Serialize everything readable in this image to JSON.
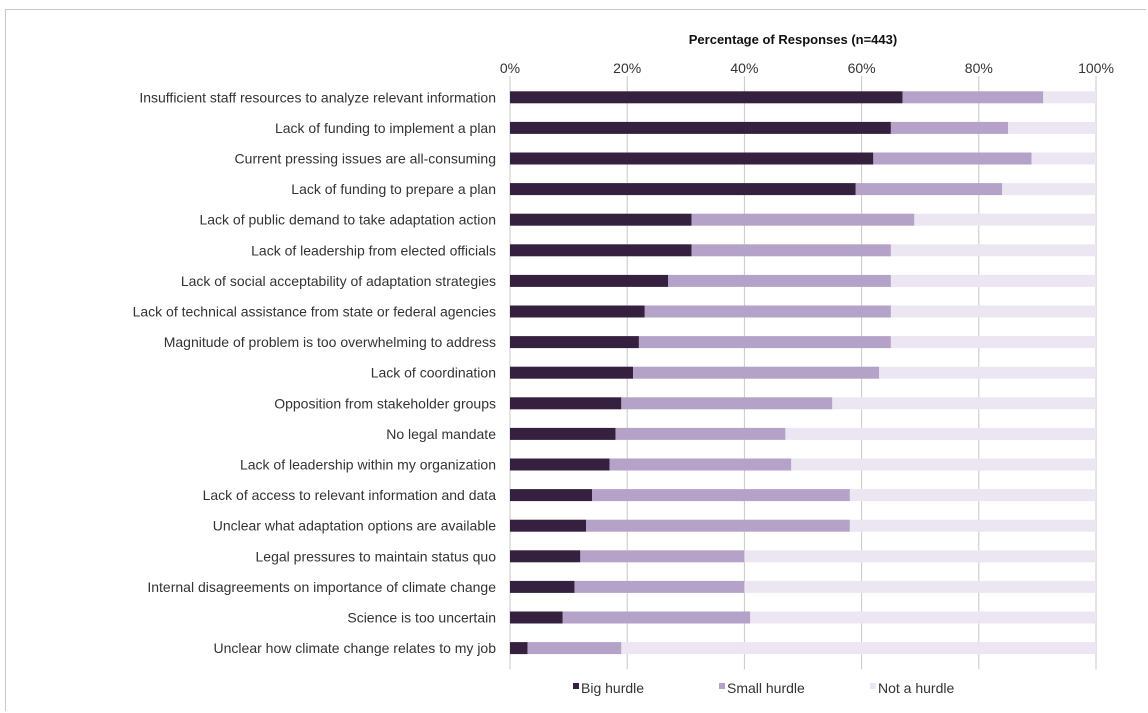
{
  "chart_data": {
    "type": "bar",
    "stacked": true,
    "orientation": "horizontal",
    "title": "Percentage of Responses (n=443)",
    "xlim": [
      0,
      100
    ],
    "x_ticks": [
      "0%",
      "20%",
      "40%",
      "60%",
      "80%",
      "100%"
    ],
    "grid": true,
    "legend_position": "bottom",
    "categories": [
      "Insufficient staff resources to analyze relevant information",
      "Lack of funding to implement a plan",
      "Current pressing issues are all-consuming",
      "Lack of funding to prepare a plan",
      "Lack of public demand to take adaptation action",
      "Lack of leadership from elected officials",
      "Lack of social acceptability of adaptation strategies",
      "Lack of technical assistance from state or federal agencies",
      "Magnitude of problem is too overwhelming to address",
      "Lack of coordination",
      "Opposition from stakeholder groups",
      "No legal mandate",
      "Lack of leadership within my organization",
      "Lack of access to relevant information and data",
      "Unclear what adaptation options are available",
      "Legal pressures to maintain status quo",
      "Internal disagreements on importance of climate change",
      "Science is too uncertain",
      "Unclear how climate change relates to my job"
    ],
    "series": [
      {
        "name": "Big hurdle",
        "color": "#35213f",
        "values": [
          67,
          65,
          62,
          59,
          31,
          31,
          27,
          23,
          22,
          21,
          19,
          18,
          17,
          14,
          13,
          12,
          11,
          9,
          3
        ]
      },
      {
        "name": "Small hurdle",
        "color": "#b4a2c9",
        "values": [
          24,
          20,
          27,
          25,
          38,
          34,
          38,
          42,
          43,
          42,
          36,
          29,
          31,
          44,
          45,
          28,
          29,
          32,
          16
        ]
      },
      {
        "name": "Not a hurdle",
        "color": "#ebe6f1",
        "values": [
          9,
          15,
          11,
          16,
          31,
          35,
          35,
          35,
          35,
          37,
          45,
          53,
          52,
          42,
          42,
          60,
          60,
          59,
          81
        ]
      }
    ]
  }
}
